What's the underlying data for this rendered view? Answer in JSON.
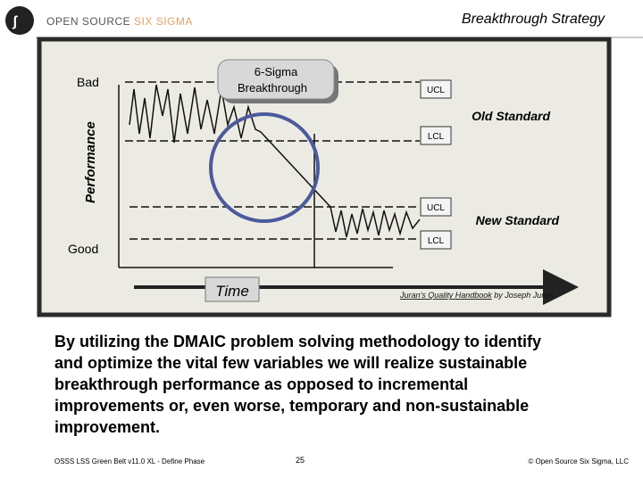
{
  "header": {
    "logo_part1": "OPEN SOURCE",
    "logo_part2": "SIX SIGMA",
    "title": "Breakthrough Strategy"
  },
  "diagram": {
    "bad": "Bad",
    "good": "Good",
    "y_axis": "Performance",
    "callout": [
      "6-Sigma",
      "Breakthrough"
    ],
    "old_ucl": "UCL",
    "old_lcl": "LCL",
    "new_ucl": "UCL",
    "new_lcl": "LCL",
    "old_standard": "Old Standard",
    "new_standard": "New Standard",
    "time": "Time",
    "citation_title": "Juran's Quality Handbook",
    "citation_author": " by Joseph Juran"
  },
  "body": {
    "lines": [
      "By utilizing the DMAIC problem solving methodology to identify",
      "and optimize the vital few variables we will realize sustainable",
      "breakthrough performance as opposed to incremental",
      "improvements or, even worse, temporary and non-sustainable",
      "improvement."
    ]
  },
  "footer": {
    "left": "OSSS LSS Green Belt v11.0 XL - Define Phase",
    "page": "25",
    "right": "© Open Source Six Sigma, LLC"
  }
}
